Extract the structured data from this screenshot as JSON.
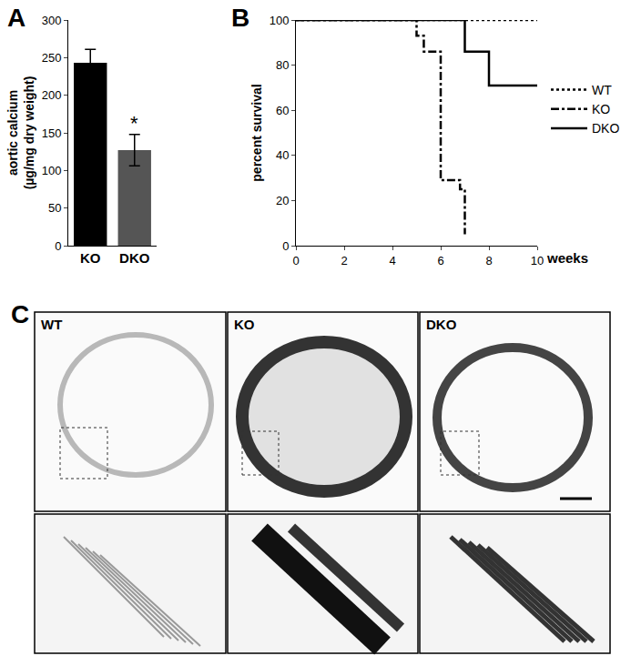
{
  "chart_data": [
    {
      "panel": "A",
      "type": "bar",
      "categories": [
        "KO",
        "DKO"
      ],
      "values": [
        243,
        127
      ],
      "errors": [
        18,
        21
      ],
      "colors": [
        "#000000",
        "#555555"
      ],
      "ylabel": [
        "aortic calcium",
        "(µg/mg dry weight)"
      ],
      "ylim": [
        0,
        300
      ],
      "yticks": [
        0,
        50,
        100,
        150,
        200,
        250,
        300
      ],
      "grid": false,
      "annotations": [
        {
          "text": "*",
          "category": "DKO"
        }
      ]
    },
    {
      "panel": "B",
      "type": "line",
      "xlabel": "weeks",
      "ylabel": "percent survival",
      "xlim": [
        0,
        10
      ],
      "xticks": [
        0,
        2,
        4,
        6,
        8,
        10
      ],
      "ylim": [
        0,
        100
      ],
      "yticks": [
        0,
        20,
        40,
        60,
        80,
        100
      ],
      "grid": false,
      "legend": "right",
      "series": [
        {
          "name": "WT",
          "color": "#000000",
          "line_style": "dotted",
          "x": [
            0,
            10
          ],
          "values": [
            100,
            100
          ]
        },
        {
          "name": "KO",
          "color": "#000000",
          "line_style": "dashdot",
          "x": [
            0,
            5,
            5.3,
            6,
            6.8,
            7
          ],
          "values": [
            100,
            93,
            86,
            29,
            25,
            5
          ]
        },
        {
          "name": "DKO",
          "color": "#000000",
          "line_style": "solid",
          "x": [
            0,
            7,
            8,
            10
          ],
          "values": [
            100,
            86,
            71,
            71
          ]
        }
      ]
    }
  ],
  "micrographs": {
    "panel": "C",
    "labels": [
      "WT",
      "KO",
      "DKO"
    ]
  }
}
